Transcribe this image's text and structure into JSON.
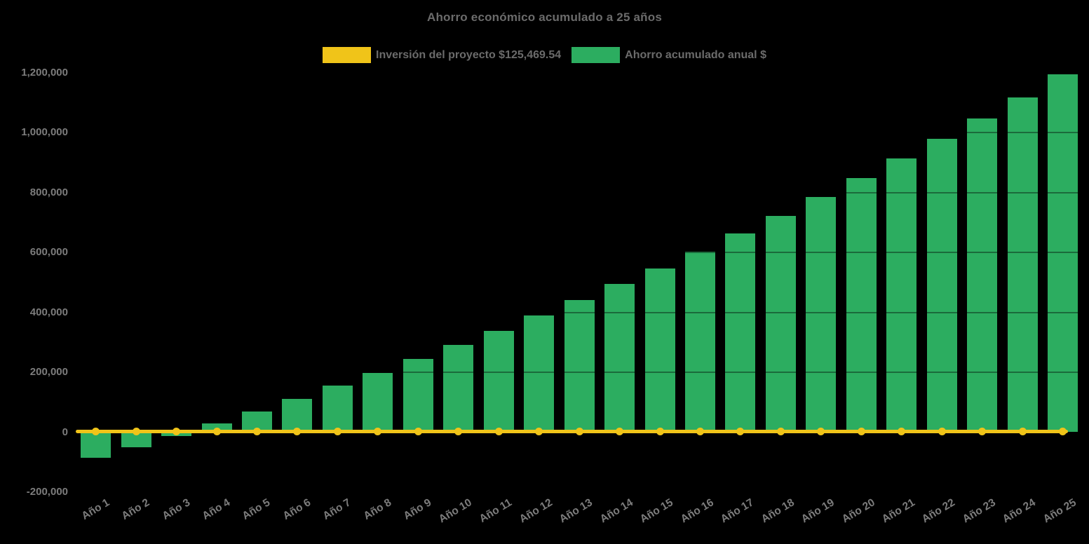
{
  "header": {
    "title": "Ahorro económico acumulado a 25 años"
  },
  "legend": {
    "items": [
      {
        "id": "investment",
        "label": "Inversión del proyecto $125,469.54",
        "color": "#F0C419",
        "series_type": "line"
      },
      {
        "id": "savings",
        "label": "Ahorro acumulado anual $",
        "color": "#2CAD60",
        "series_type": "bar"
      }
    ]
  },
  "chart_data": {
    "type": "bar",
    "title": "Ahorro económico acumulado a 25 años",
    "categories": [
      "Año 1",
      "Año 2",
      "Año 3",
      "Año 4",
      "Año 5",
      "Año 6",
      "Año 7",
      "Año 8",
      "Año 9",
      "Año 10",
      "Año 11",
      "Año 12",
      "Año 13",
      "Año 14",
      "Año 15",
      "Año 16",
      "Año 17",
      "Año 18",
      "Año 19",
      "Año 20",
      "Año 21",
      "Año 22",
      "Año 23",
      "Año 24",
      "Año 25"
    ],
    "series": [
      {
        "name": "Ahorro acumulado anual $",
        "type": "bar",
        "color": "#2CAD60",
        "values": [
          -86000,
          -50000,
          -12000,
          29000,
          70000,
          111000,
          155000,
          198000,
          245000,
          291000,
          338000,
          389000,
          441000,
          494000,
          547000,
          603000,
          662000,
          721000,
          785000,
          848000,
          913000,
          979000,
          1047000,
          1118000,
          1195000
        ]
      },
      {
        "name": "Inversión del proyecto $125,469.54",
        "type": "line",
        "color": "#F0C419",
        "investment_value": 125469.54,
        "plotted_constant": 0
      }
    ],
    "xlabel": "",
    "ylabel": "",
    "ylim": [
      -200000,
      1300000
    ],
    "y_ticks": [
      {
        "value": -200000,
        "label": "-200,000"
      },
      {
        "value": 0,
        "label": "0"
      },
      {
        "value": 200000,
        "label": "200,000"
      },
      {
        "value": 400000,
        "label": "400,000"
      },
      {
        "value": 600000,
        "label": "600,000"
      },
      {
        "value": 800000,
        "label": "800,000"
      },
      {
        "value": 1000000,
        "label": "1,000,000"
      },
      {
        "value": 1200000,
        "label": "1,200,000"
      }
    ],
    "grid": true,
    "legend_position": "top-center",
    "x_tick_rotation_deg": -31
  },
  "colors": {
    "background": "#000000",
    "bar_green": "#2CAD60",
    "line_yellow": "#F0C419",
    "title_text": "#6B6B6B",
    "tick_text": "#7C7C7C"
  }
}
